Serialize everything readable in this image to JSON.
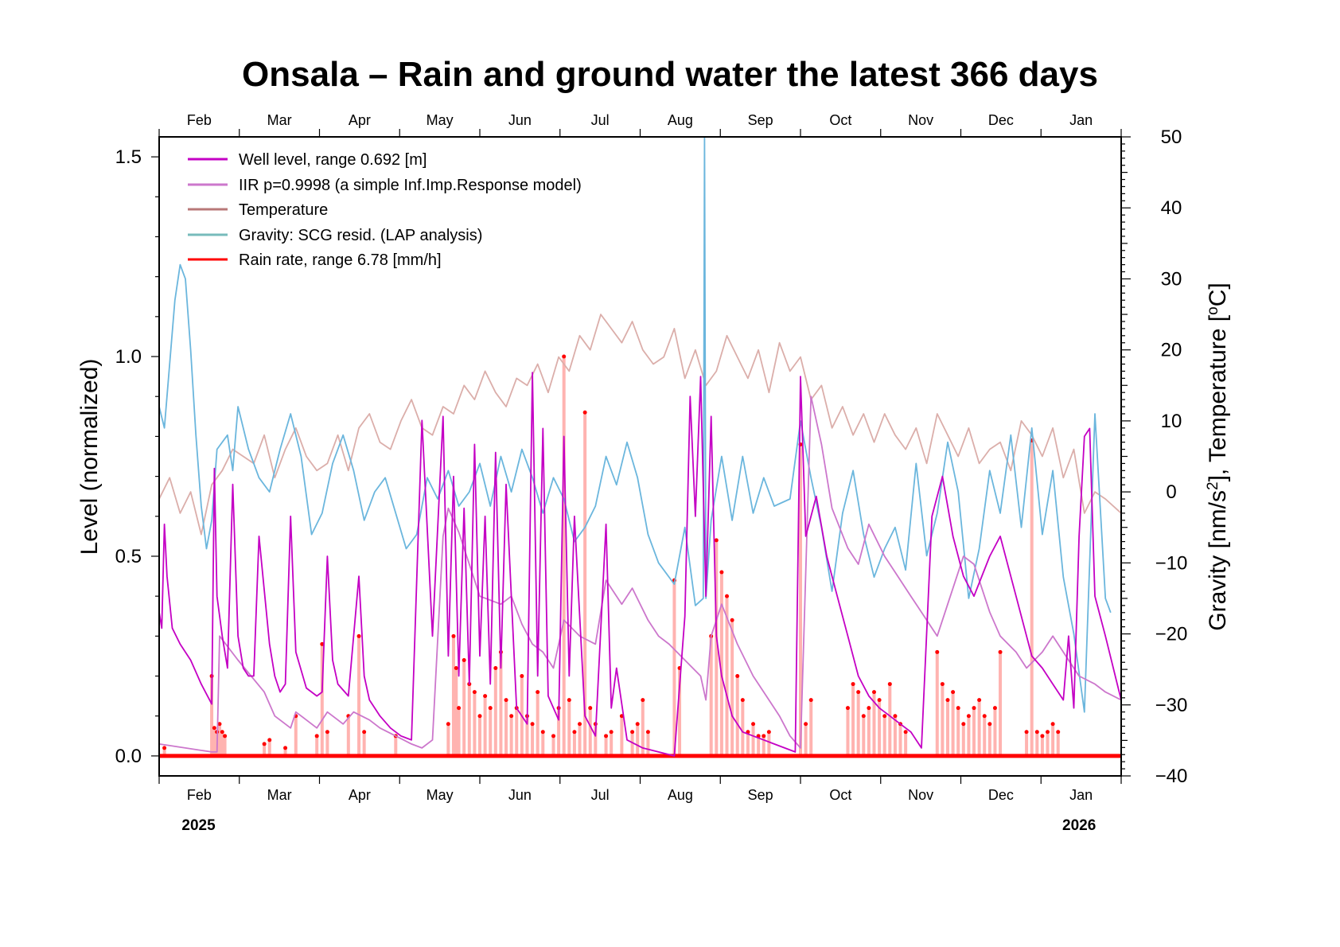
{
  "chart_data": {
    "type": "line",
    "title": "Onsala – Rain and ground water the latest 366 days",
    "xlabel": "",
    "ylabel": "Level (normalized)",
    "ylabel_right": "Gravity [nm/s²], Temperature [ºC]",
    "ylabel_right_parts": {
      "pre": "Gravity [nm/s",
      "sup": "2",
      "post": "], Temperature [",
      "sup2": "o",
      "post2": "C]"
    },
    "x_unit": "day index (0 = mid-January 2025, 366 = mid-January 2026)",
    "xlim": [
      0,
      366
    ],
    "ylim": [
      -0.05,
      1.55
    ],
    "ylim_right": [
      -40,
      50
    ],
    "grid": false,
    "legend_position": "top-left",
    "month_ticks": [
      0,
      30.5,
      61,
      91.5,
      122,
      152.5,
      183,
      213.5,
      244,
      274.5,
      305,
      335.5,
      366
    ],
    "month_labels": [
      "Feb",
      "Mar",
      "Apr",
      "May",
      "Jun",
      "Jul",
      "Aug",
      "Sep",
      "Oct",
      "Nov",
      "Dec",
      "Jan"
    ],
    "year_labels": [
      {
        "text": "2025",
        "at": 15
      },
      {
        "text": "2026",
        "at": 350
      }
    ],
    "left_ticks": [
      0.0,
      0.5,
      1.0,
      1.5
    ],
    "left_tick_labels": [
      "0.0",
      "0.5",
      "1.0",
      "1.5"
    ],
    "right_ticks": [
      -40,
      -30,
      -20,
      -10,
      0,
      10,
      20,
      30,
      40,
      50
    ],
    "right_tick_labels": [
      "−40",
      "−30",
      "−20",
      "−10",
      "0",
      "10",
      "20",
      "30",
      "40",
      "50"
    ],
    "legend": [
      {
        "label": "Well level, range 0.692 [m]",
        "color": "#c400c4"
      },
      {
        "label": "IIR p=0.9998 (a simple Inf.Imp.Response model)",
        "color": "#cc77cc"
      },
      {
        "label": "Temperature",
        "color": "#b87878"
      },
      {
        "label": "Gravity: SCG resid. (LAP analysis)",
        "color": "#77bbbb"
      },
      {
        "label": "Rain rate, range 6.78 [mm/h]",
        "color": "#ff0000"
      }
    ],
    "series": [
      {
        "name": "Temperature",
        "axis": "right",
        "color": "#dbaeaa",
        "x": [
          0,
          4,
          8,
          12,
          16,
          20,
          24,
          28,
          32,
          36,
          40,
          44,
          48,
          52,
          56,
          60,
          64,
          68,
          72,
          76,
          80,
          84,
          88,
          92,
          96,
          100,
          104,
          108,
          112,
          116,
          120,
          124,
          128,
          132,
          136,
          140,
          144,
          148,
          152,
          156,
          160,
          164,
          168,
          172,
          176,
          180,
          184,
          188,
          192,
          196,
          200,
          204,
          208,
          212,
          216,
          220,
          224,
          228,
          232,
          236,
          240,
          244,
          248,
          252,
          256,
          260,
          264,
          268,
          272,
          276,
          280,
          284,
          288,
          292,
          296,
          300,
          304,
          308,
          312,
          316,
          320,
          324,
          328,
          332,
          336,
          340,
          344,
          348,
          352,
          356,
          360,
          366
        ],
        "y": [
          -1,
          2,
          -3,
          0,
          -6,
          1,
          3,
          6,
          5,
          4,
          8,
          2,
          6,
          9,
          5,
          3,
          4,
          8,
          3,
          9,
          11,
          7,
          6,
          10,
          13,
          9,
          8,
          12,
          11,
          15,
          13,
          17,
          14,
          12,
          16,
          15,
          18,
          14,
          19,
          17,
          22,
          20,
          25,
          23,
          21,
          24,
          20,
          18,
          19,
          23,
          16,
          20,
          15,
          17,
          22,
          19,
          16,
          20,
          14,
          21,
          17,
          19,
          13,
          15,
          9,
          12,
          8,
          11,
          7,
          11,
          8,
          6,
          9,
          4,
          11,
          8,
          5,
          9,
          4,
          6,
          7,
          3,
          10,
          8,
          5,
          9,
          2,
          6,
          -3,
          0,
          -1,
          -3
        ]
      },
      {
        "name": "Gravity: SCG resid. (LAP analysis)",
        "axis": "right",
        "color": "#6bb6dd",
        "x": [
          0,
          2,
          4,
          6,
          8,
          10,
          12,
          14,
          16,
          18,
          20,
          22,
          26,
          28,
          30,
          34,
          38,
          42,
          46,
          50,
          54,
          58,
          62,
          66,
          70,
          74,
          78,
          82,
          86,
          90,
          94,
          98,
          102,
          106,
          110,
          114,
          118,
          122,
          126,
          130,
          134,
          138,
          142,
          146,
          150,
          154,
          158,
          162,
          166,
          170,
          174,
          178,
          182,
          186,
          190,
          196,
          200,
          204,
          207,
          207.5,
          208,
          210,
          214,
          218,
          222,
          226,
          230,
          234,
          240,
          244,
          248,
          252,
          256,
          260,
          264,
          268,
          272,
          276,
          280,
          284,
          288,
          292,
          296,
          300,
          304,
          308,
          312,
          316,
          320,
          324,
          328,
          332,
          336,
          340,
          344,
          348,
          352,
          356,
          360,
          362
        ],
        "y": [
          12,
          9,
          18,
          27,
          32,
          30,
          20,
          8,
          -2,
          -8,
          -4,
          6,
          8,
          3,
          12,
          6,
          2,
          0,
          6,
          11,
          5,
          -6,
          -3,
          4,
          8,
          3,
          -4,
          0,
          2,
          -3,
          -8,
          -6,
          2,
          -1,
          3,
          -2,
          0,
          4,
          -2,
          5,
          0,
          6,
          2,
          -3,
          2,
          -1,
          -7,
          -5,
          -2,
          5,
          1,
          7,
          2,
          -6,
          -10,
          -13,
          -5,
          -16,
          -15,
          50,
          -15,
          -4,
          5,
          -4,
          5,
          -3,
          2,
          -2,
          -1,
          10,
          2,
          -5,
          -14,
          -3,
          3,
          -6,
          -12,
          -8,
          -5,
          -11,
          4,
          -9,
          -3,
          7,
          0,
          -15,
          -8,
          3,
          -3,
          8,
          -5,
          9,
          -6,
          3,
          -12,
          -20,
          -31,
          11,
          -15,
          -17
        ]
      },
      {
        "name": "IIR p=0.9998 (a simple Inf.Imp.Response model)",
        "axis": "left",
        "color": "#cc77cc",
        "x": [
          0,
          10,
          20,
          22,
          23,
          30,
          40,
          44,
          48,
          50,
          52,
          56,
          60,
          64,
          68,
          70,
          74,
          80,
          84,
          90,
          96,
          100,
          104,
          108,
          110,
          114,
          118,
          122,
          130,
          134,
          138,
          142,
          146,
          150,
          154,
          160,
          166,
          170,
          176,
          180,
          186,
          190,
          194,
          200,
          206,
          208,
          210,
          214,
          220,
          226,
          230,
          236,
          240,
          244,
          248,
          252,
          256,
          262,
          266,
          270,
          276,
          280,
          286,
          290,
          296,
          300,
          306,
          310,
          316,
          320,
          326,
          330,
          336,
          340,
          346,
          350,
          356,
          360,
          366
        ],
        "y": [
          0.03,
          0.02,
          0.01,
          0.01,
          0.3,
          0.24,
          0.16,
          0.1,
          0.08,
          0.07,
          0.11,
          0.09,
          0.07,
          0.11,
          0.09,
          0.08,
          0.11,
          0.09,
          0.07,
          0.05,
          0.03,
          0.02,
          0.04,
          0.55,
          0.62,
          0.56,
          0.48,
          0.4,
          0.38,
          0.4,
          0.33,
          0.28,
          0.26,
          0.22,
          0.34,
          0.3,
          0.28,
          0.44,
          0.38,
          0.42,
          0.34,
          0.3,
          0.28,
          0.24,
          0.2,
          0.14,
          0.3,
          0.38,
          0.28,
          0.2,
          0.16,
          0.1,
          0.05,
          0.02,
          0.9,
          0.78,
          0.62,
          0.52,
          0.48,
          0.58,
          0.5,
          0.46,
          0.4,
          0.36,
          0.3,
          0.38,
          0.5,
          0.48,
          0.36,
          0.3,
          0.26,
          0.22,
          0.26,
          0.3,
          0.24,
          0.2,
          0.18,
          0.16,
          0.14
        ]
      },
      {
        "name": "Well level, range 0.692 [m]",
        "axis": "left",
        "color": "#c400c4",
        "x": [
          0,
          1,
          2,
          3,
          5,
          8,
          12,
          16,
          20,
          21,
          22,
          24,
          26,
          28,
          30,
          32,
          34,
          36,
          38,
          42,
          44,
          46,
          48,
          50,
          52,
          56,
          60,
          62,
          64,
          66,
          68,
          72,
          76,
          78,
          80,
          84,
          88,
          92,
          96,
          100,
          104,
          108,
          110,
          112,
          114,
          116,
          118,
          120,
          122,
          124,
          126,
          128,
          130,
          132,
          136,
          140,
          142,
          144,
          146,
          148,
          152,
          154,
          156,
          158,
          162,
          166,
          170,
          172,
          174,
          178,
          184,
          190,
          196,
          200,
          202,
          204,
          206,
          208,
          210,
          212,
          214,
          218,
          222,
          226,
          230,
          234,
          238,
          242,
          244,
          246,
          250,
          254,
          258,
          262,
          266,
          270,
          274,
          278,
          282,
          286,
          290,
          294,
          298,
          302,
          306,
          310,
          316,
          320,
          326,
          330,
          332,
          336,
          340,
          344,
          346,
          348,
          350,
          352,
          354,
          356,
          360,
          366
        ],
        "y": [
          0.36,
          0.32,
          0.58,
          0.45,
          0.32,
          0.28,
          0.24,
          0.18,
          0.13,
          0.72,
          0.4,
          0.3,
          0.22,
          0.68,
          0.3,
          0.22,
          0.2,
          0.2,
          0.55,
          0.28,
          0.2,
          0.16,
          0.18,
          0.6,
          0.26,
          0.17,
          0.15,
          0.16,
          0.5,
          0.24,
          0.18,
          0.15,
          0.45,
          0.2,
          0.14,
          0.1,
          0.07,
          0.05,
          0.04,
          0.84,
          0.3,
          0.85,
          0.25,
          0.7,
          0.2,
          0.62,
          0.18,
          0.78,
          0.25,
          0.6,
          0.18,
          0.76,
          0.22,
          0.68,
          0.12,
          0.08,
          0.96,
          0.2,
          0.82,
          0.15,
          0.09,
          0.8,
          0.2,
          0.6,
          0.1,
          0.05,
          0.58,
          0.12,
          0.22,
          0.04,
          0.02,
          0.01,
          0.0,
          0.35,
          0.9,
          0.6,
          0.95,
          0.4,
          0.85,
          0.3,
          0.2,
          0.1,
          0.06,
          0.05,
          0.04,
          0.03,
          0.02,
          0.01,
          0.95,
          0.55,
          0.65,
          0.5,
          0.4,
          0.3,
          0.2,
          0.15,
          0.12,
          0.1,
          0.08,
          0.06,
          0.02,
          0.6,
          0.7,
          0.55,
          0.45,
          0.4,
          0.5,
          0.55,
          0.4,
          0.3,
          0.25,
          0.22,
          0.18,
          0.14,
          0.3,
          0.12,
          0.55,
          0.8,
          0.82,
          0.4,
          0.3,
          0.14
        ]
      }
    ],
    "rain": {
      "name": "Rain rate, range 6.78 [mm/h]",
      "axis": "left",
      "color": "#ff0000",
      "bar_color": "#ffb3b0",
      "baseline": 0.0,
      "x": [
        2,
        20,
        21,
        22,
        23,
        24,
        25,
        40,
        42,
        48,
        52,
        60,
        62,
        64,
        72,
        76,
        78,
        90,
        110,
        112,
        113,
        114,
        116,
        118,
        120,
        122,
        124,
        126,
        128,
        130,
        132,
        134,
        136,
        138,
        140,
        142,
        144,
        146,
        150,
        152,
        154,
        156,
        158,
        160,
        162,
        164,
        166,
        170,
        172,
        176,
        180,
        182,
        184,
        186,
        196,
        198,
        210,
        212,
        214,
        216,
        218,
        220,
        222,
        224,
        226,
        228,
        230,
        232,
        244,
        246,
        248,
        262,
        264,
        266,
        268,
        270,
        272,
        274,
        276,
        278,
        280,
        282,
        284,
        296,
        298,
        300,
        302,
        304,
        306,
        308,
        310,
        312,
        314,
        316,
        318,
        320,
        330,
        332,
        334,
        336,
        338,
        340,
        342
      ],
      "y": [
        0.02,
        0.2,
        0.07,
        0.06,
        0.08,
        0.06,
        0.05,
        0.03,
        0.04,
        0.02,
        0.1,
        0.05,
        0.28,
        0.06,
        0.1,
        0.3,
        0.06,
        0.05,
        0.08,
        0.3,
        0.22,
        0.12,
        0.24,
        0.18,
        0.16,
        0.1,
        0.15,
        0.12,
        0.22,
        0.26,
        0.14,
        0.1,
        0.12,
        0.2,
        0.1,
        0.08,
        0.16,
        0.06,
        0.05,
        0.12,
        1.0,
        0.14,
        0.06,
        0.08,
        0.86,
        0.12,
        0.08,
        0.05,
        0.06,
        0.1,
        0.06,
        0.08,
        0.14,
        0.06,
        0.44,
        0.22,
        0.3,
        0.54,
        0.46,
        0.4,
        0.34,
        0.2,
        0.14,
        0.06,
        0.08,
        0.05,
        0.05,
        0.06,
        0.78,
        0.08,
        0.14,
        0.12,
        0.18,
        0.16,
        0.1,
        0.12,
        0.16,
        0.14,
        0.1,
        0.18,
        0.1,
        0.08,
        0.06,
        0.26,
        0.18,
        0.14,
        0.16,
        0.12,
        0.08,
        0.1,
        0.12,
        0.14,
        0.1,
        0.08,
        0.12,
        0.26,
        0.06,
        0.79,
        0.06,
        0.05,
        0.06,
        0.08,
        0.06
      ]
    }
  }
}
